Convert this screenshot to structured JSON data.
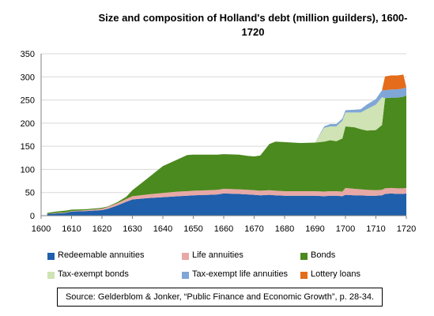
{
  "chart_data": {
    "type": "area",
    "stacked": true,
    "title": "Size and composition of Holland's debt (million guilders), 1600-1720",
    "title_lines": [
      "Size and composition of Holland's debt (million guilders), 1600-",
      "1720"
    ],
    "xlabel": "",
    "ylabel": "",
    "xlim": [
      1600,
      1720
    ],
    "ylim": [
      0,
      350
    ],
    "x_ticks": [
      1600,
      1610,
      1620,
      1630,
      1640,
      1650,
      1660,
      1670,
      1680,
      1690,
      1700,
      1710,
      1720
    ],
    "y_ticks": [
      0,
      50,
      100,
      150,
      200,
      250,
      300,
      350
    ],
    "grid": "horizontal",
    "legend_position": "bottom",
    "x": [
      1602,
      1605,
      1608,
      1610,
      1615,
      1620,
      1622,
      1625,
      1628,
      1630,
      1635,
      1640,
      1645,
      1648,
      1650,
      1655,
      1658,
      1660,
      1665,
      1668,
      1670,
      1672,
      1675,
      1677,
      1680,
      1685,
      1690,
      1693,
      1695,
      1697,
      1699,
      1700,
      1703,
      1705,
      1707,
      1710,
      1712,
      1713,
      1715,
      1717,
      1719,
      1720
    ],
    "series": [
      {
        "name": "Redeemable annuities",
        "color": "#1f5fac",
        "values": [
          4,
          5,
          6,
          9,
          10,
          12,
          15,
          22,
          30,
          35,
          38,
          40,
          42,
          43,
          44,
          45,
          46,
          48,
          47,
          46,
          45,
          44,
          45,
          44,
          43,
          43,
          43,
          42,
          43,
          43,
          42,
          45,
          44,
          44,
          43,
          43,
          44,
          47,
          48,
          47,
          47,
          48
        ]
      },
      {
        "name": "Life annuities",
        "color": "#e8a8a6",
        "values": [
          0,
          1,
          1,
          1,
          2,
          3,
          4,
          5,
          6,
          7,
          8,
          9,
          10,
          10,
          10,
          10,
          10,
          10,
          10,
          10,
          10,
          10,
          10,
          10,
          10,
          10,
          10,
          10,
          10,
          10,
          10,
          15,
          14,
          13,
          13,
          12,
          12,
          12,
          12,
          12,
          12,
          12
        ]
      },
      {
        "name": "Bonds",
        "color": "#4b8a1e",
        "values": [
          2,
          3,
          4,
          3,
          2,
          2,
          1,
          2,
          5,
          13,
          35,
          58,
          70,
          78,
          78,
          77,
          76,
          75,
          75,
          73,
          73,
          76,
          100,
          106,
          106,
          104,
          105,
          108,
          110,
          108,
          115,
          133,
          133,
          130,
          128,
          130,
          140,
          195,
          195,
          196,
          198,
          200
        ]
      },
      {
        "name": "Tax-exempt bonds",
        "color": "#cfe3b4",
        "values": [
          0,
          0,
          0,
          0,
          0,
          0,
          0,
          0,
          0,
          0,
          0,
          0,
          0,
          0,
          0,
          0,
          0,
          0,
          0,
          0,
          0,
          0,
          0,
          0,
          0,
          0,
          0,
          30,
          30,
          32,
          38,
          30,
          32,
          36,
          46,
          55,
          60,
          0,
          0,
          0,
          0,
          0
        ]
      },
      {
        "name": "Tax-exempt life annuities",
        "color": "#7fa6d6",
        "values": [
          0,
          0,
          0,
          0,
          0,
          0,
          0,
          0,
          0,
          0,
          0,
          0,
          0,
          0,
          0,
          0,
          0,
          0,
          0,
          0,
          0,
          0,
          0,
          0,
          0,
          0,
          0,
          3,
          5,
          5,
          5,
          5,
          6,
          7,
          10,
          12,
          15,
          17,
          18,
          18,
          18,
          18
        ]
      },
      {
        "name": "Lottery loans",
        "color": "#e46c1a",
        "values": [
          0,
          0,
          0,
          0,
          0,
          0,
          0,
          0,
          0,
          0,
          0,
          0,
          0,
          0,
          0,
          0,
          0,
          0,
          0,
          0,
          0,
          0,
          0,
          0,
          0,
          0,
          0,
          0,
          0,
          0,
          0,
          0,
          0,
          0,
          0,
          0,
          0,
          30,
          30,
          30,
          30,
          0
        ]
      }
    ],
    "source": "Source: Gelderblom & Jonker, “Public Finance and Economic Growth”, p. 28-34."
  }
}
